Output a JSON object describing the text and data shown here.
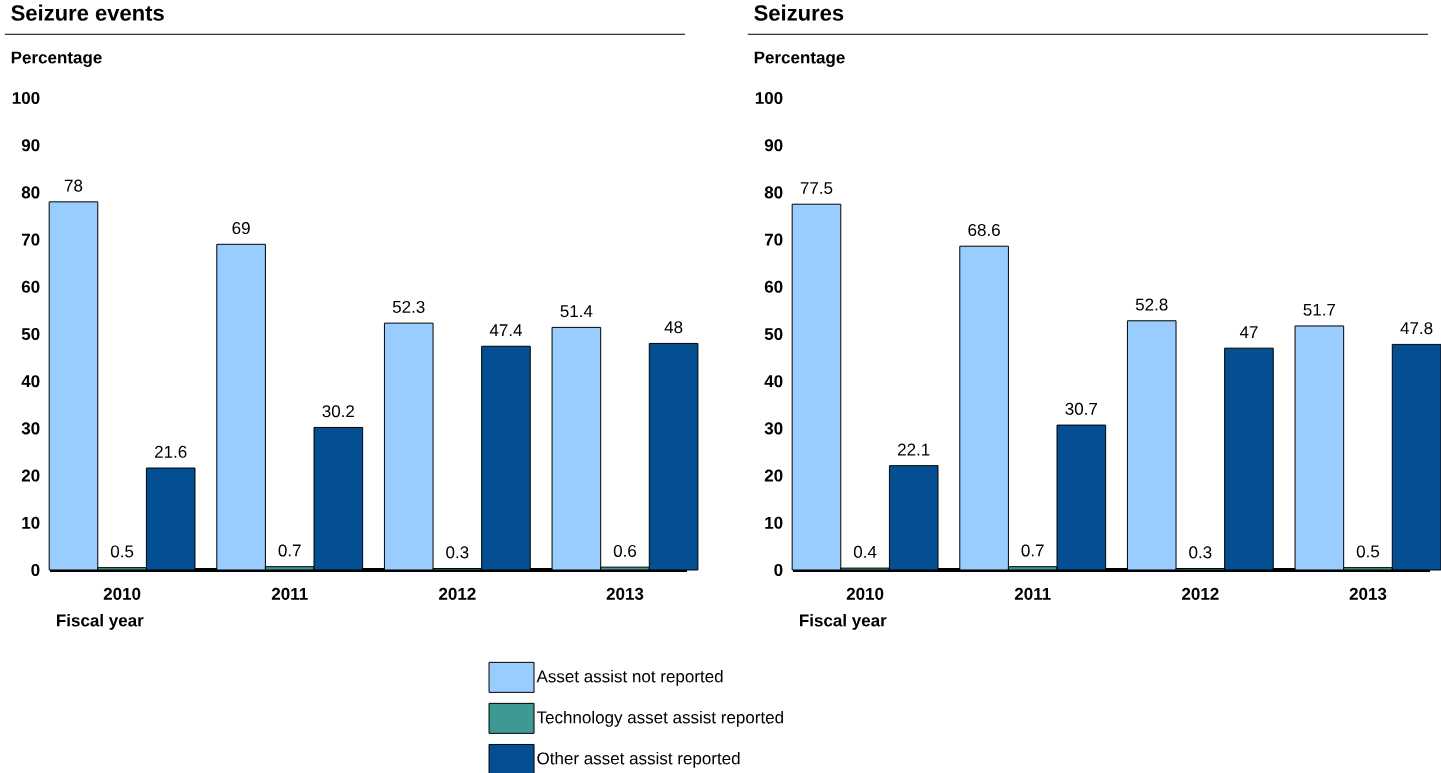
{
  "chart_data": [
    {
      "type": "bar",
      "title": "Seizure events",
      "ylabel": "Percentage",
      "xlabel": "Fiscal year",
      "categories": [
        "2010",
        "2011",
        "2012",
        "2013"
      ],
      "ylim": [
        0,
        100
      ],
      "yticks": [
        0,
        10,
        20,
        30,
        40,
        50,
        60,
        70,
        80,
        90,
        100
      ],
      "data_labels": true,
      "legend": false,
      "series": [
        {
          "color": "#99ccff",
          "values": [
            78,
            69,
            52.3,
            51.4
          ]
        },
        {
          "color": "#3d9991",
          "values": [
            0.5,
            0.7,
            0.3,
            0.6
          ]
        },
        {
          "color": "#034f91",
          "values": [
            21.6,
            30.2,
            47.4,
            48
          ]
        }
      ]
    },
    {
      "type": "bar",
      "title": "Seizures",
      "ylabel": "Percentage",
      "xlabel": "Fiscal year",
      "categories": [
        "2010",
        "2011",
        "2012",
        "2013"
      ],
      "ylim": [
        0,
        100
      ],
      "yticks": [
        0,
        10,
        20,
        30,
        40,
        50,
        60,
        70,
        80,
        90,
        100
      ],
      "data_labels": true,
      "legend": "bottom",
      "series": [
        {
          "name": "Asset assist not reported",
          "color": "#99ccff",
          "values": [
            77.5,
            68.6,
            52.8,
            51.7
          ]
        },
        {
          "name": "Technology asset assist reported",
          "color": "#3d9991",
          "values": [
            0.4,
            0.7,
            0.3,
            0.5
          ]
        },
        {
          "name": "Other asset assist reported",
          "color": "#034f91",
          "values": [
            22.1,
            30.7,
            47,
            47.8
          ]
        }
      ]
    }
  ]
}
